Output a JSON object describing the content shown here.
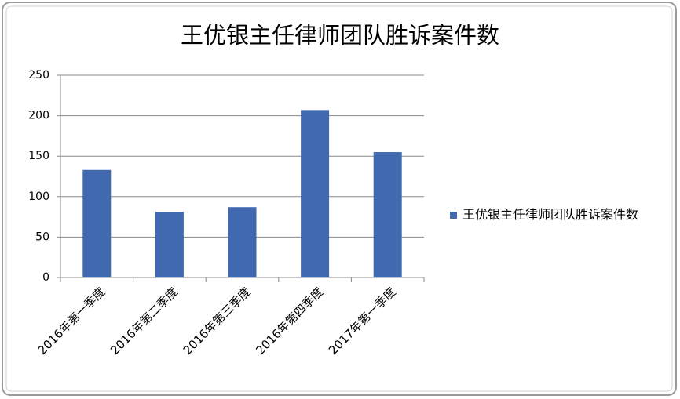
{
  "chart_data": {
    "type": "bar",
    "title": "王优银主任律师团队胜诉案件数",
    "categories": [
      "2016年第一季度",
      "2016年第二季度",
      "2016年第三季度",
      "2016年第四季度",
      "2017年第一季度"
    ],
    "series": [
      {
        "name": "王优银主任律师团队胜诉案件数",
        "color": "#4169b0",
        "values": [
          133,
          81,
          87,
          207,
          155
        ]
      }
    ],
    "ylim": [
      0,
      250
    ],
    "yticks": [
      0,
      50,
      100,
      150,
      200,
      250
    ],
    "grid": true,
    "legend": "right"
  }
}
